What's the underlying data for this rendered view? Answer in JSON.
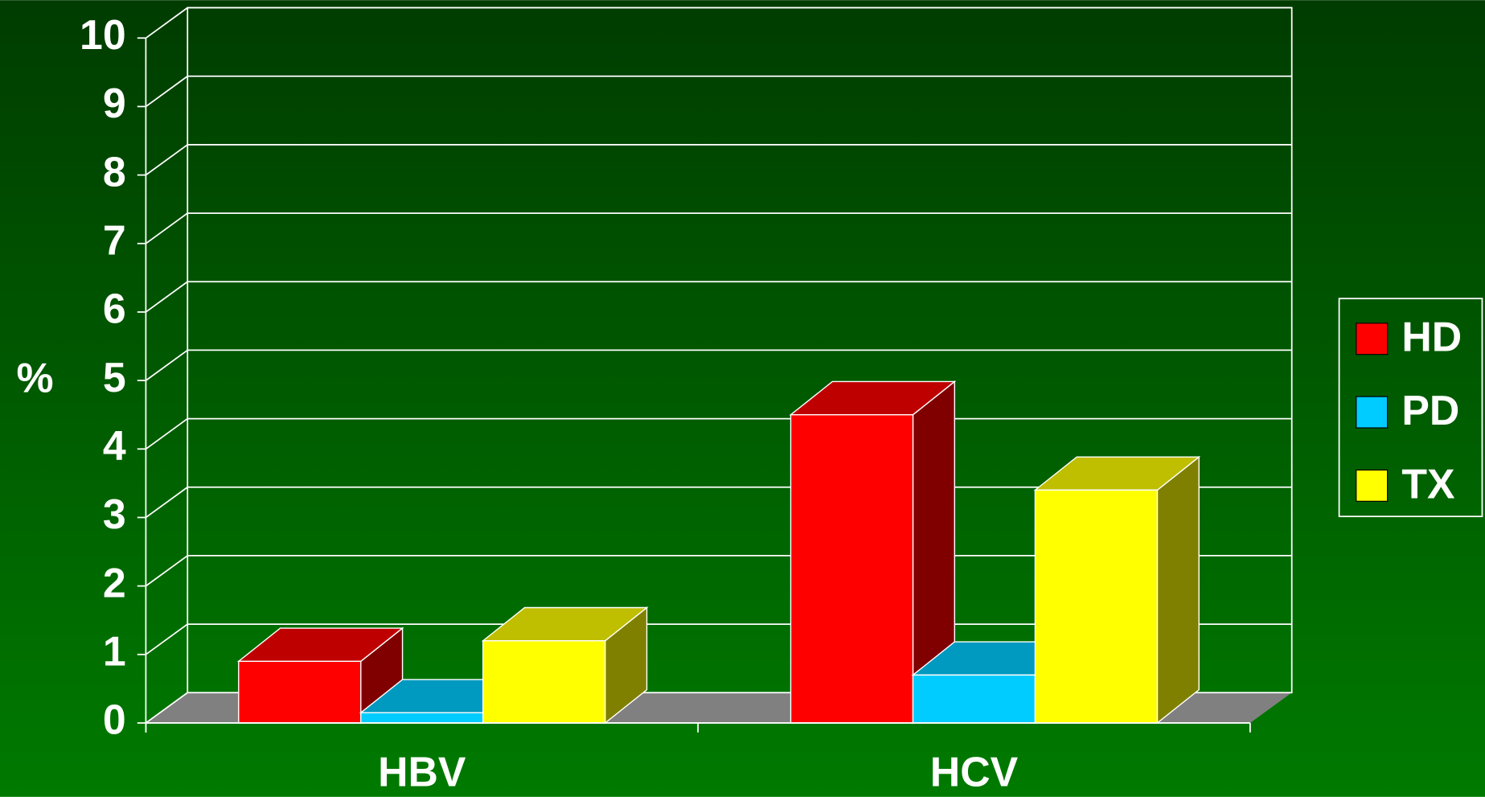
{
  "chart_data": {
    "type": "bar",
    "y_label": "%",
    "categories": [
      "HBV",
      "HCV"
    ],
    "series": [
      {
        "name": "HD",
        "color": "#ff0000",
        "values": [
          0.9,
          4.5
        ]
      },
      {
        "name": "PD",
        "color": "#00ccff",
        "values": [
          0.15,
          0.7
        ]
      },
      {
        "name": "TX",
        "color": "#ffff00",
        "values": [
          1.2,
          3.4
        ]
      }
    ],
    "ylim": [
      0,
      10
    ],
    "yticks": [
      0,
      1,
      2,
      3,
      4,
      5,
      6,
      7,
      8,
      9,
      10
    ],
    "grid": true,
    "legend": "right"
  }
}
